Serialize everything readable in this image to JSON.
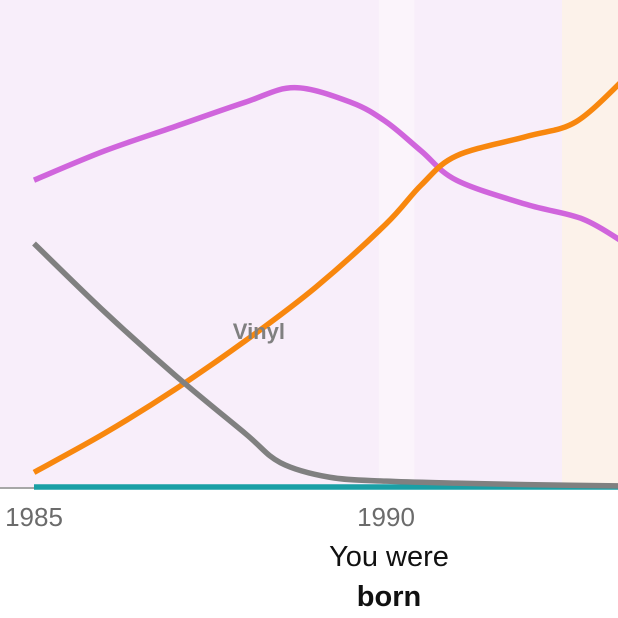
{
  "chart_data": {
    "type": "line",
    "title": "",
    "xlabel": "",
    "ylabel": "",
    "xlim": [
      1985,
      1993.4
    ],
    "ylim": [
      0,
      100
    ],
    "xticks": [
      {
        "value": 1985,
        "label": "1985"
      },
      {
        "value": 1990,
        "label": "1990"
      }
    ],
    "series": [
      {
        "name": "",
        "color": "#d065dc",
        "points": [
          [
            1985,
            63
          ],
          [
            1986,
            69
          ],
          [
            1987,
            74
          ],
          [
            1988,
            79
          ],
          [
            1988.7,
            82
          ],
          [
            1989.5,
            79
          ],
          [
            1990,
            75
          ],
          [
            1990.5,
            69
          ],
          [
            1991,
            63
          ],
          [
            1992,
            58
          ],
          [
            1992.8,
            55
          ],
          [
            1993.4,
            50
          ]
        ]
      },
      {
        "name": "Vinyl",
        "color": "#808080",
        "points": [
          [
            1985,
            50
          ],
          [
            1986,
            36
          ],
          [
            1987,
            23
          ],
          [
            1988,
            11
          ],
          [
            1988.5,
            5
          ],
          [
            1989.2,
            2
          ],
          [
            1990,
            1.2
          ],
          [
            1991,
            0.8
          ],
          [
            1992,
            0.5
          ],
          [
            1993.4,
            0.2
          ]
        ]
      },
      {
        "name": "",
        "color": "#f8870e",
        "points": [
          [
            1985,
            3
          ],
          [
            1986,
            11
          ],
          [
            1987,
            20
          ],
          [
            1988,
            30
          ],
          [
            1989,
            41
          ],
          [
            1990,
            54
          ],
          [
            1990.5,
            62
          ],
          [
            1991,
            68
          ],
          [
            1992,
            72
          ],
          [
            1992.7,
            75
          ],
          [
            1993.4,
            84
          ]
        ]
      },
      {
        "name": "",
        "color": "#1a9fa5",
        "points": [
          [
            1985,
            0
          ],
          [
            1993.4,
            0
          ]
        ]
      }
    ],
    "bands": [
      {
        "x0": 1984.5,
        "x1": 1989.9,
        "color": "#f8eefa"
      },
      {
        "x0": 1989.9,
        "x1": 1990.4,
        "color": "#fbf4fb"
      },
      {
        "x0": 1990.4,
        "x1": 1992.5,
        "color": "#f8eefa"
      },
      {
        "x0": 1992.5,
        "x1": 1993.4,
        "color": "#fcf2ea"
      }
    ],
    "series_label": {
      "text": "Vinyl",
      "x": 1988.25,
      "y": 32
    },
    "annotation": {
      "line1": "You were",
      "line2": "born",
      "x": 1990
    }
  }
}
